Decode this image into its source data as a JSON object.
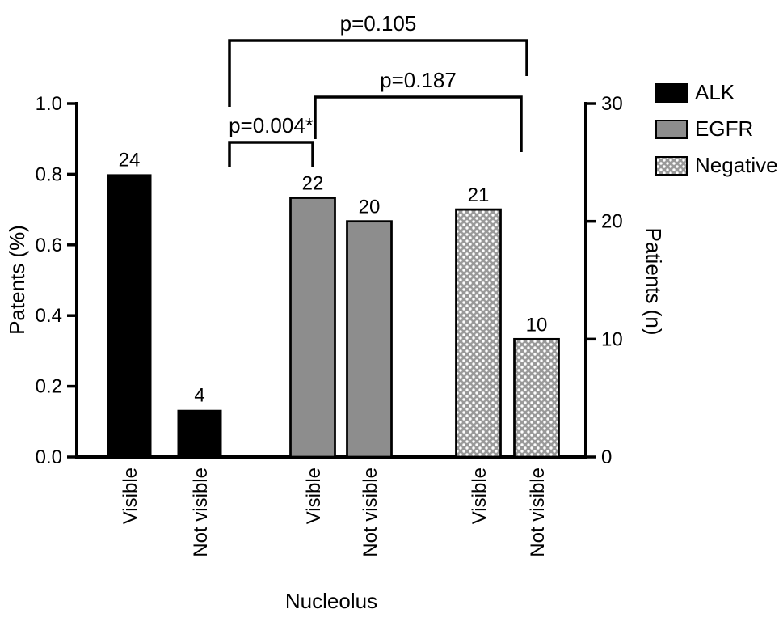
{
  "chart_data": {
    "type": "bar",
    "title": "",
    "xlabel": "Nucleolus",
    "grid": false,
    "left_axis": {
      "label": "Patents (%)",
      "min": 0,
      "max": 1.0,
      "ticks": [
        "0.0",
        "0.2",
        "0.4",
        "0.6",
        "0.8",
        "1.0"
      ]
    },
    "right_axis": {
      "label": "Patients (n)",
      "min": 0,
      "max": 30,
      "ticks": [
        "0",
        "10",
        "20",
        "30"
      ]
    },
    "bars": [
      {
        "group": "ALK",
        "category": "Visible",
        "value": 24
      },
      {
        "group": "ALK",
        "category": "Not visible",
        "value": 4
      },
      {
        "group": "EGFR",
        "category": "Visible",
        "value": 22
      },
      {
        "group": "EGFR",
        "category": "Not visible",
        "value": 20
      },
      {
        "group": "Negative",
        "category": "Visible",
        "value": 21
      },
      {
        "group": "Negative",
        "category": "Not visible",
        "value": 10
      }
    ],
    "legend": {
      "position": "top-right",
      "items": [
        {
          "label": "ALK",
          "style": "solid-black",
          "color": "#000000"
        },
        {
          "label": "EGFR",
          "style": "solid-gray",
          "color": "#8d8d8d"
        },
        {
          "label": "Negative",
          "style": "stippled-gray",
          "color": "#999999"
        }
      ]
    },
    "comparisons": [
      {
        "label": "p=0.105",
        "between": [
          "ALK",
          "Negative"
        ]
      },
      {
        "label": "p=0.187",
        "between": [
          "EGFR",
          "Negative"
        ]
      },
      {
        "label": "p=0.004*",
        "between": [
          "ALK",
          "EGFR"
        ]
      }
    ],
    "colors": {
      "axis": "#000000",
      "text": "#000000",
      "background": "#ffffff"
    }
  }
}
